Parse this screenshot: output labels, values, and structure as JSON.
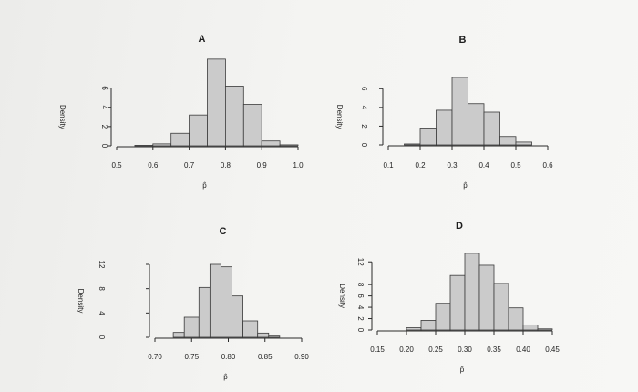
{
  "chart_data": [
    {
      "type": "bar",
      "title": "A",
      "xlabel": "p̂",
      "ylabel": "Density",
      "xticks": [
        "0.5",
        "0.6",
        "0.7",
        "0.8",
        "0.9",
        "1.0"
      ],
      "yticks": [
        "0",
        "2",
        "4",
        "6"
      ],
      "bin_edges": [
        0.5,
        0.55,
        0.6,
        0.65,
        0.7,
        0.75,
        0.8,
        0.85,
        0.9,
        0.95,
        1.0
      ],
      "values": [
        0,
        0.05,
        0.2,
        1.3,
        3.2,
        9.0,
        6.2,
        4.3,
        0.5,
        0.1
      ],
      "xlim": [
        0.5,
        1.0
      ],
      "ylim": [
        0,
        7.0
      ]
    },
    {
      "type": "bar",
      "title": "B",
      "xlabel": "p̂",
      "ylabel": "Density",
      "xticks": [
        "0.1",
        "0.2",
        "0.3",
        "0.4",
        "0.5",
        "0.6"
      ],
      "yticks": [
        "0",
        "2",
        "4",
        "6"
      ],
      "bin_edges": [
        0.1,
        0.15,
        0.2,
        0.25,
        0.3,
        0.35,
        0.4,
        0.45,
        0.5,
        0.55,
        0.6
      ],
      "values": [
        0,
        0.1,
        1.8,
        3.7,
        7.2,
        4.4,
        3.5,
        0.9,
        0.3,
        0
      ],
      "xlim": [
        0.1,
        0.6
      ],
      "ylim": [
        0,
        7.0
      ]
    },
    {
      "type": "bar",
      "title": "C",
      "xlabel": "p̂",
      "ylabel": "Density",
      "xticks": [
        "0.70",
        "0.75",
        "0.80",
        "0.85",
        "0.90"
      ],
      "yticks": [
        "0",
        "4",
        "8",
        "12"
      ],
      "bin_edges": [
        0.7,
        0.725,
        0.74,
        0.76,
        0.775,
        0.79,
        0.805,
        0.82,
        0.84,
        0.855,
        0.87,
        0.885
      ],
      "values": [
        0,
        0.8,
        3.3,
        8.2,
        12.0,
        11.6,
        6.8,
        2.7,
        0.7,
        0.2,
        0
      ],
      "xlim": [
        0.7,
        0.9
      ],
      "ylim": [
        0,
        12
      ]
    },
    {
      "type": "bar",
      "title": "D",
      "xlabel": "p̂",
      "ylabel": "Density",
      "xticks": [
        "0.15",
        "0.20",
        "0.25",
        "0.30",
        "0.35",
        "0.40",
        "0.45"
      ],
      "yticks": [
        "0",
        "2",
        "4",
        "6",
        "8",
        "12"
      ],
      "ytick_values": [
        0,
        2,
        4,
        6,
        8,
        12
      ],
      "bin_edges": [
        0.15,
        0.2,
        0.225,
        0.25,
        0.275,
        0.3,
        0.325,
        0.35,
        0.375,
        0.4,
        0.425,
        0.45
      ],
      "values": [
        0,
        0.4,
        1.7,
        4.7,
        9.6,
        13.5,
        11.4,
        8.2,
        3.9,
        0.9,
        0.2
      ],
      "xlim": [
        0.15,
        0.45
      ],
      "ylim": [
        0,
        13
      ]
    }
  ]
}
